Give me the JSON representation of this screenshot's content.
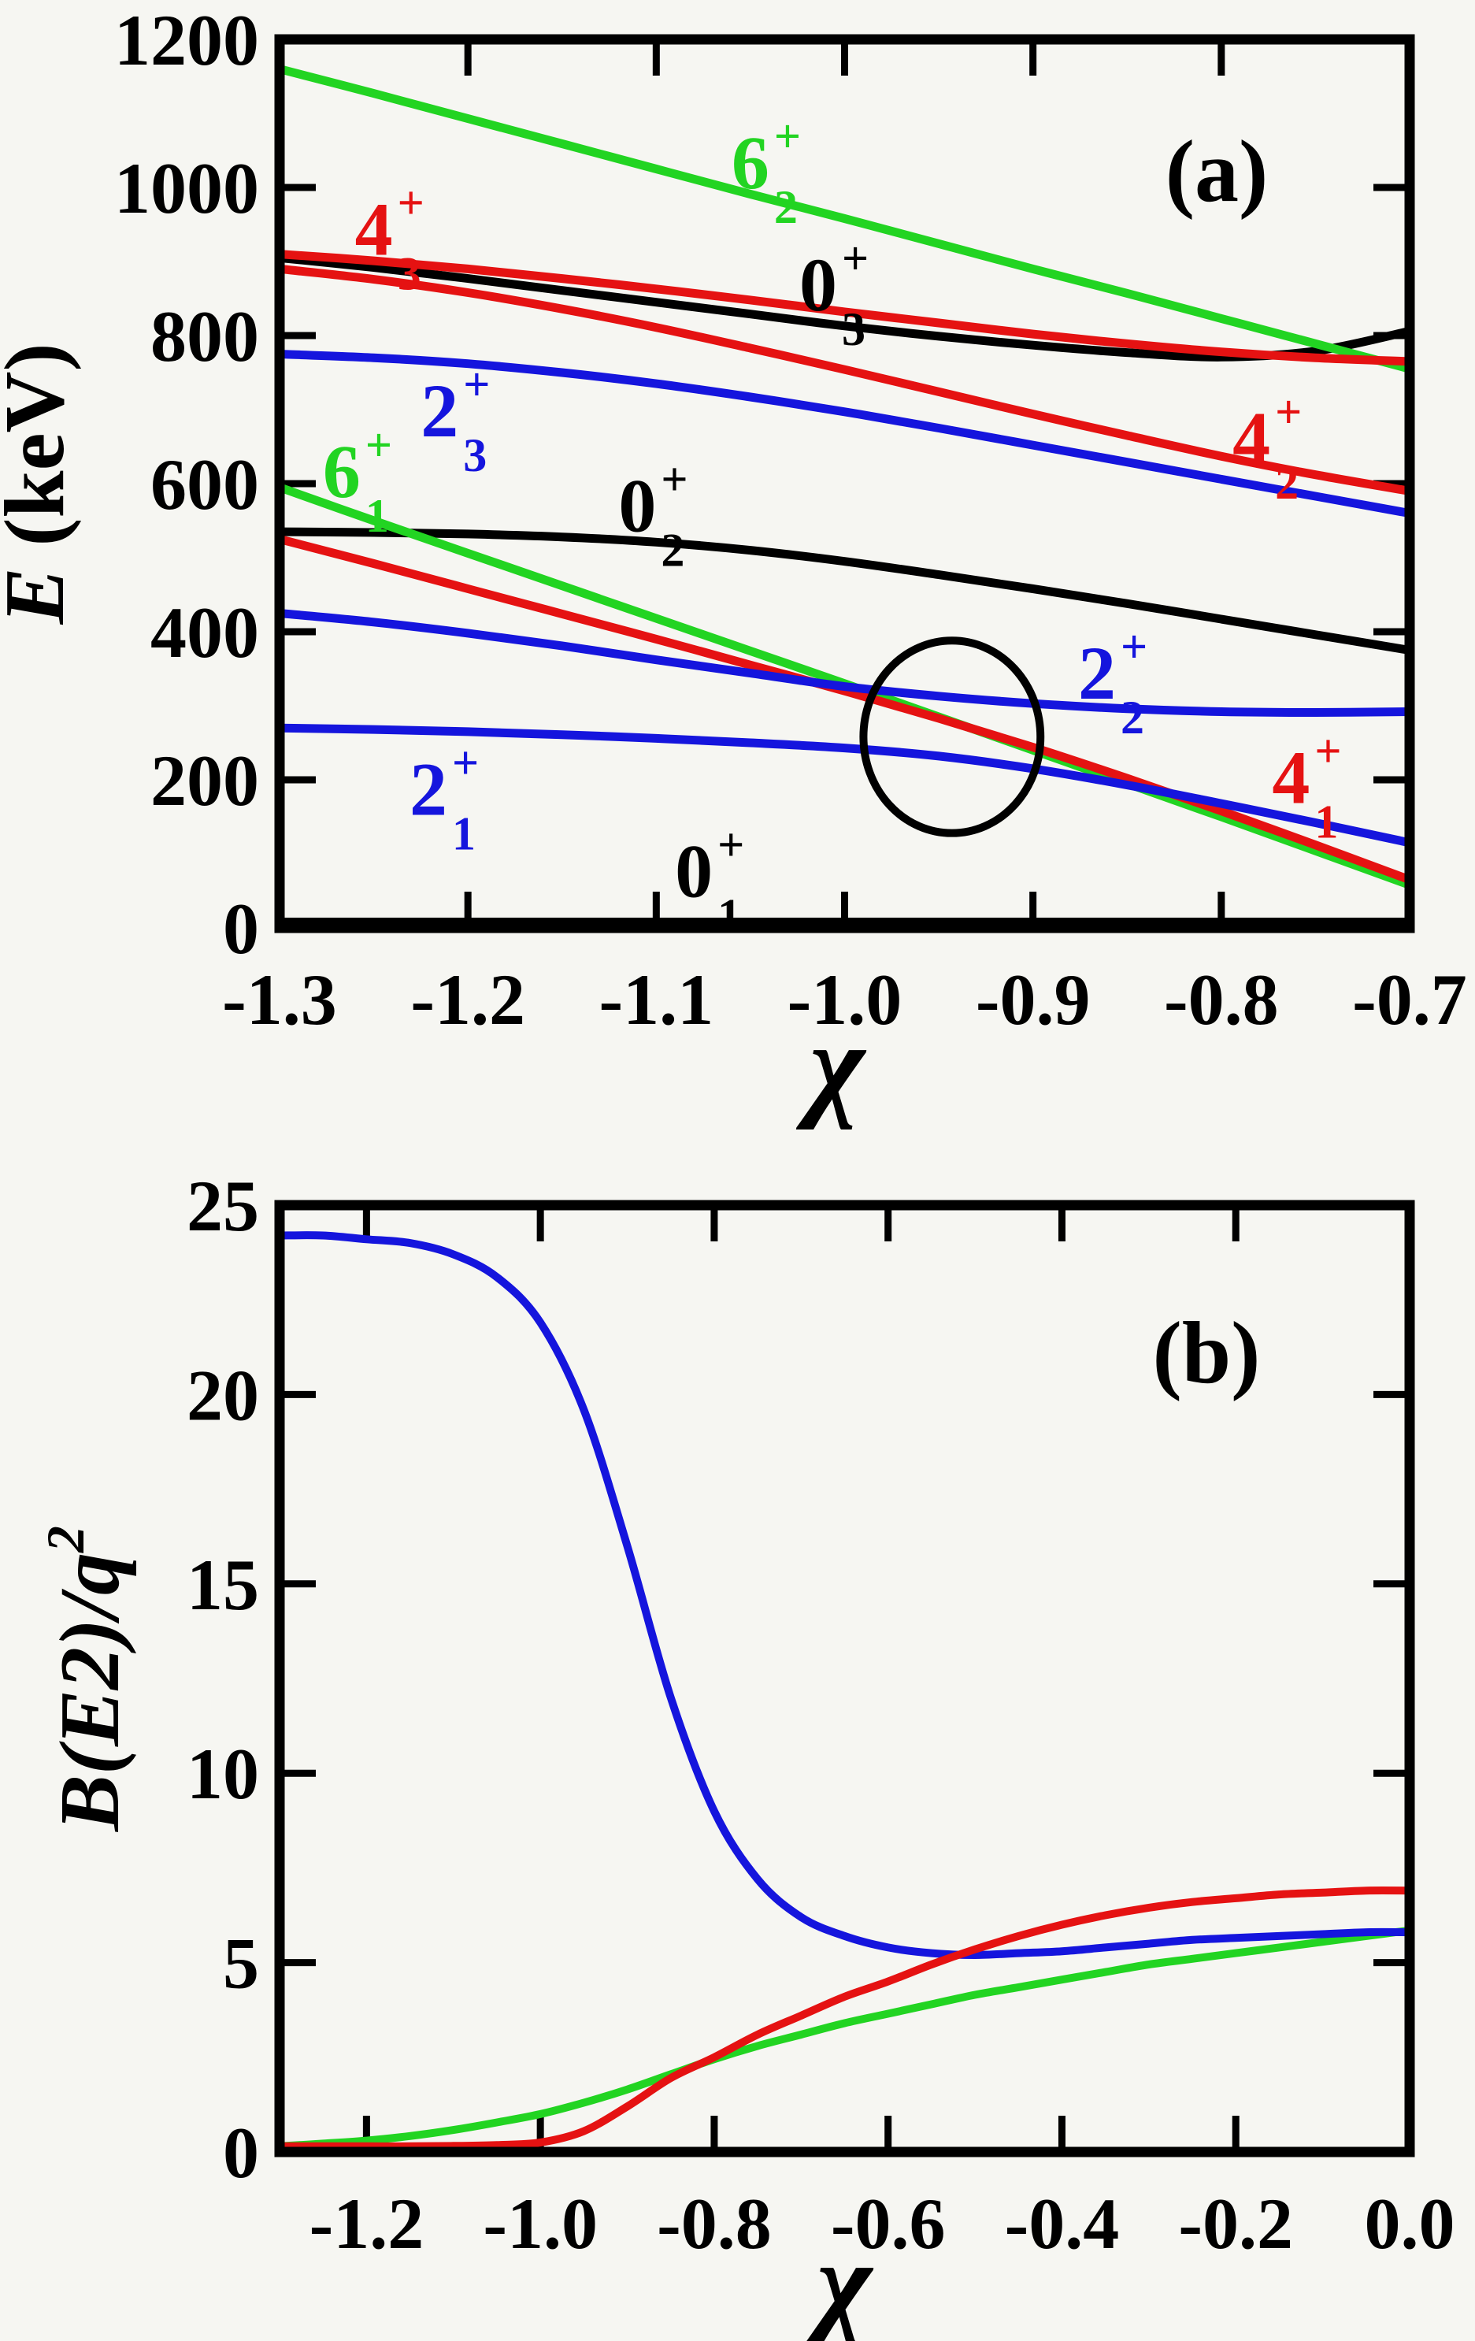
{
  "page": {
    "background": "#f6f6f2",
    "ink_color": "#000000"
  },
  "colors": {
    "black_levels": "#000000",
    "red_levels": "#e51212",
    "green_levels": "#22d422",
    "blue_levels": "#1515dd"
  },
  "chart_data": [
    {
      "id": "a",
      "type": "line",
      "tag": "(a)",
      "xlabel": "χ",
      "ylabel_parts": [
        {
          "text": "E",
          "italic": true
        },
        {
          "text": " (keV)",
          "italic": false
        }
      ],
      "xlim": [
        -1.3,
        -0.7
      ],
      "ylim": [
        0,
        1200
      ],
      "grid": false,
      "legend": "none",
      "xticks": {
        "values": [
          -1.3,
          -1.2,
          -1.1,
          -1.0,
          -0.9,
          -0.8,
          -0.7
        ],
        "labels": [
          "-1.3",
          "-1.2",
          "-1.1",
          "-1.0",
          "-0.9",
          "-0.8",
          "-0.7"
        ]
      },
      "yticks": {
        "values": [
          0,
          200,
          400,
          600,
          800,
          1000,
          1200
        ],
        "labels": [
          "0",
          "200",
          "400",
          "600",
          "800",
          "1000",
          "1200"
        ]
      },
      "x": [
        -1.3,
        -1.25,
        -1.2,
        -1.15,
        -1.1,
        -1.05,
        -1.0,
        -0.95,
        -0.9,
        -0.85,
        -0.8,
        -0.75,
        -0.7
      ],
      "series": [
        {
          "name": "0_1+",
          "color": "#000000",
          "values": [
            8,
            8,
            8,
            8,
            8,
            8,
            8,
            8,
            8,
            8,
            8,
            8,
            8
          ]
        },
        {
          "name": "0_2+",
          "color": "#000000",
          "values": [
            535,
            534,
            532,
            528,
            521,
            510,
            495,
            477,
            458,
            438,
            417,
            396,
            375
          ]
        },
        {
          "name": "0_3+",
          "color": "#000000",
          "values": [
            905,
            892,
            877,
            861,
            845,
            829,
            813,
            799,
            787,
            777,
            771,
            779,
            806
          ]
        },
        {
          "name": "6_1+",
          "color": "#22d422",
          "values": [
            595,
            550,
            506,
            462,
            418,
            374,
            330,
            285,
            240,
            195,
            150,
            104,
            58
          ]
        },
        {
          "name": "6_2+",
          "color": "#22d422",
          "values": [
            1160,
            1127,
            1093,
            1059,
            1025,
            991,
            958,
            924,
            890,
            857,
            823,
            789,
            755
          ]
        },
        {
          "name": "4_1+",
          "color": "#e51212",
          "values": [
            525,
            492,
            458,
            424,
            390,
            355,
            320,
            283,
            244,
            202,
            158,
            112,
            65
          ]
        },
        {
          "name": "4_2+",
          "color": "#e51212",
          "values": [
            890,
            876,
            858,
            836,
            811,
            783,
            754,
            724,
            694,
            665,
            637,
            612,
            590
          ]
        },
        {
          "name": "4_3+",
          "color": "#e51212",
          "values": [
            910,
            901,
            890,
            877,
            863,
            848,
            832,
            817,
            802,
            789,
            778,
            770,
            765
          ]
        },
        {
          "name": "2_1+",
          "color": "#1515dd",
          "values": [
            270,
            268,
            265,
            261,
            256,
            250,
            243,
            232,
            215,
            193,
            168,
            142,
            115
          ]
        },
        {
          "name": "2_2+",
          "color": "#1515dd",
          "values": [
            425,
            413,
            398,
            381,
            362,
            344,
            326,
            313,
            303,
            296,
            292,
            291,
            292
          ]
        },
        {
          "name": "2_3+",
          "color": "#1515dd",
          "values": [
            775,
            770,
            762,
            750,
            735,
            717,
            697,
            675,
            652,
            629,
            606,
            583,
            560
          ]
        }
      ],
      "state_labels": [
        {
          "main": "6",
          "sup": "+",
          "sub": "2",
          "color": "#22d422",
          "x": -1.05,
          "y": 1035
        },
        {
          "main": "4",
          "sup": "+",
          "sub": "3",
          "color": "#e51212",
          "x": -1.25,
          "y": 945
        },
        {
          "main": "0",
          "sup": "+",
          "sub": "3",
          "color": "#000000",
          "x": -1.014,
          "y": 870
        },
        {
          "main": "2",
          "sup": "+",
          "sub": "3",
          "color": "#1515dd",
          "x": -1.215,
          "y": 700
        },
        {
          "main": "4",
          "sup": "+",
          "sub": "2",
          "color": "#e51212",
          "x": -0.784,
          "y": 663
        },
        {
          "main": "6",
          "sup": "+",
          "sub": "1",
          "color": "#22d422",
          "x": -1.267,
          "y": 618
        },
        {
          "main": "0",
          "sup": "+",
          "sub": "2",
          "color": "#000000",
          "x": -1.11,
          "y": 572
        },
        {
          "main": "2",
          "sup": "+",
          "sub": "2",
          "color": "#1515dd",
          "x": -0.866,
          "y": 346
        },
        {
          "main": "4",
          "sup": "+",
          "sub": "1",
          "color": "#e51212",
          "x": -0.763,
          "y": 205
        },
        {
          "main": "2",
          "sup": "+",
          "sub": "1",
          "color": "#1515dd",
          "x": -1.221,
          "y": 189
        },
        {
          "main": "0",
          "sup": "+",
          "sub": "1",
          "color": "#000000",
          "x": -1.08,
          "y": 78
        }
      ],
      "tag_pos": {
        "x": -0.803,
        "y": 1025
      },
      "ellipse": {
        "cx": -0.943,
        "cy": 258,
        "rx": 0.047,
        "ry": 130
      }
    },
    {
      "id": "b",
      "type": "line",
      "tag": "(b)",
      "xlabel": "χ",
      "ylabel_parts": [
        {
          "text": "B(E2)/q",
          "italic": true
        },
        {
          "text": "2",
          "italic": true,
          "sup": true
        }
      ],
      "xlim": [
        -1.3,
        0.0
      ],
      "ylim": [
        0,
        25
      ],
      "grid": false,
      "legend": "none",
      "xticks": {
        "values": [
          -1.2,
          -1.0,
          -0.8,
          -0.6,
          -0.4,
          -0.2,
          0.0
        ],
        "labels": [
          "-1.2",
          "-1.0",
          "-0.8",
          "-0.6",
          "-0.4",
          "-0.2",
          "0.0"
        ]
      },
      "yticks": {
        "values": [
          0,
          5,
          10,
          15,
          20,
          25
        ],
        "labels": [
          "0",
          "5",
          "10",
          "15",
          "20",
          "25"
        ]
      },
      "x": [
        -1.3,
        -1.25,
        -1.2,
        -1.15,
        -1.1,
        -1.05,
        -1.0,
        -0.95,
        -0.9,
        -0.85,
        -0.8,
        -0.75,
        -0.7,
        -0.65,
        -0.6,
        -0.55,
        -0.5,
        -0.45,
        -0.4,
        -0.35,
        -0.3,
        -0.25,
        -0.2,
        -0.15,
        -0.1,
        -0.05,
        0.0
      ],
      "series": [
        {
          "name": "BE2-green",
          "color": "#22d422",
          "values": [
            0.15,
            0.22,
            0.3,
            0.42,
            0.58,
            0.78,
            1.0,
            1.3,
            1.65,
            2.05,
            2.45,
            2.8,
            3.1,
            3.4,
            3.65,
            3.9,
            4.15,
            4.35,
            4.55,
            4.75,
            4.95,
            5.1,
            5.25,
            5.4,
            5.55,
            5.7,
            5.85
          ]
        },
        {
          "name": "BE2-blue",
          "color": "#1515dd",
          "values": [
            24.2,
            24.2,
            24.1,
            24.0,
            23.7,
            23.1,
            21.9,
            19.6,
            16.0,
            12.0,
            9.0,
            7.2,
            6.2,
            5.7,
            5.4,
            5.25,
            5.2,
            5.25,
            5.3,
            5.4,
            5.5,
            5.6,
            5.65,
            5.7,
            5.75,
            5.8,
            5.8
          ]
        },
        {
          "name": "BE2-red",
          "color": "#e51212",
          "values": [
            0.15,
            0.15,
            0.15,
            0.15,
            0.16,
            0.18,
            0.25,
            0.55,
            1.2,
            1.95,
            2.5,
            3.1,
            3.6,
            4.1,
            4.5,
            4.95,
            5.35,
            5.7,
            6.0,
            6.25,
            6.45,
            6.6,
            6.7,
            6.8,
            6.85,
            6.9,
            6.9
          ]
        }
      ],
      "state_labels": [],
      "tag_pos": {
        "x": -0.236,
        "y": 21.1
      },
      "ellipse": null
    }
  ]
}
